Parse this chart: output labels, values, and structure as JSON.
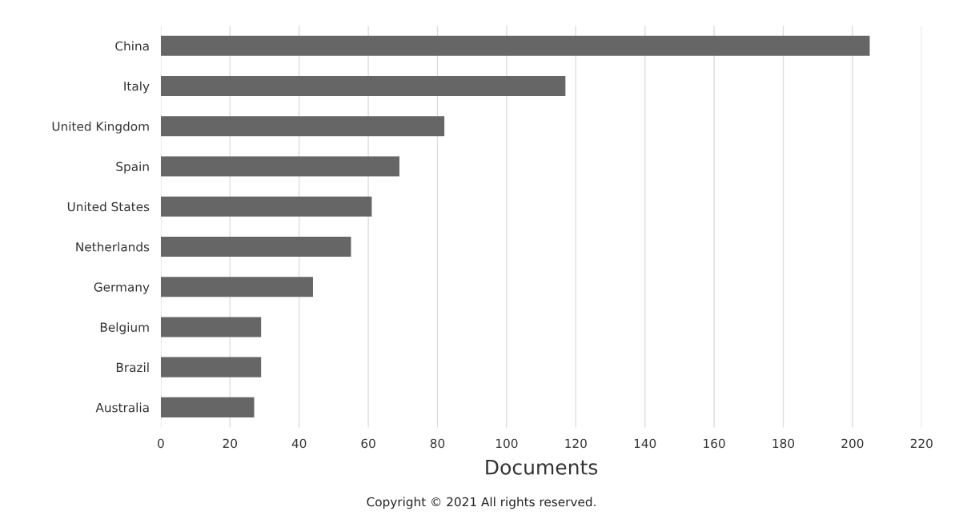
{
  "chart_data": {
    "type": "bar",
    "orientation": "horizontal",
    "xlabel": "Documents",
    "categories": [
      "China",
      "Italy",
      "United Kingdom",
      "Spain",
      "United States",
      "Netherlands",
      "Germany",
      "Belgium",
      "Brazil",
      "Australia"
    ],
    "values": [
      205,
      117,
      82,
      69,
      61,
      55,
      44,
      29,
      29,
      27
    ],
    "color": "#666666",
    "xlim": [
      0,
      220
    ],
    "xticks": [
      0,
      20,
      40,
      60,
      80,
      100,
      120,
      140,
      160,
      180,
      200,
      220
    ],
    "grid": "x",
    "legend": false,
    "annotations": [
      "Copyright © 2021 All rights reserved."
    ]
  }
}
